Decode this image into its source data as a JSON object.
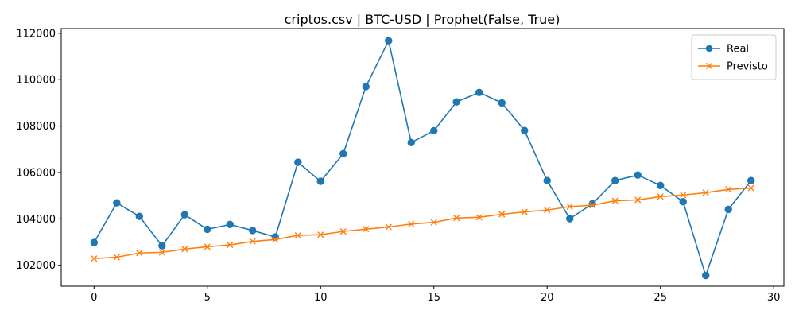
{
  "chart_data": {
    "type": "line",
    "title": "criptos.csv | BTC-USD | Prophet(False, True)",
    "xlabel": "",
    "ylabel": "",
    "xlim": [
      -1.45,
      30.45
    ],
    "ylim": [
      101100,
      112200
    ],
    "x_ticks": [
      0,
      5,
      10,
      15,
      20,
      25,
      30
    ],
    "y_ticks": [
      102000,
      104000,
      106000,
      108000,
      110000,
      112000
    ],
    "x_tick_labels": [
      "0",
      "5",
      "10",
      "15",
      "20",
      "25",
      "30"
    ],
    "y_tick_labels": [
      "102000",
      "104000",
      "106000",
      "108000",
      "110000",
      "112000"
    ],
    "grid": false,
    "legend_position": "top-right",
    "x": [
      0,
      1,
      2,
      3,
      4,
      5,
      6,
      7,
      8,
      9,
      10,
      11,
      12,
      13,
      14,
      15,
      16,
      17,
      18,
      19,
      20,
      21,
      22,
      23,
      24,
      25,
      26,
      27,
      28,
      29
    ],
    "series": [
      {
        "name": "Real",
        "color": "#1f77b4",
        "marker": "circle",
        "values": [
          102980,
          104690,
          104110,
          102840,
          104180,
          103550,
          103760,
          103500,
          103220,
          106440,
          105620,
          106810,
          109700,
          111680,
          107290,
          107800,
          109040,
          109450,
          109000,
          107810,
          105650,
          104010,
          104650,
          105650,
          105890,
          105440,
          104740,
          101560,
          104410,
          105650
        ]
      },
      {
        "name": "Previsto",
        "color": "#ff7f0e",
        "marker": "x",
        "values": [
          102290,
          102350,
          102530,
          102560,
          102700,
          102800,
          102880,
          103030,
          103110,
          103290,
          103320,
          103460,
          103560,
          103650,
          103780,
          103850,
          104040,
          104070,
          104200,
          104300,
          104380,
          104530,
          104590,
          104780,
          104820,
          104960,
          105030,
          105130,
          105270,
          105330
        ]
      }
    ]
  }
}
